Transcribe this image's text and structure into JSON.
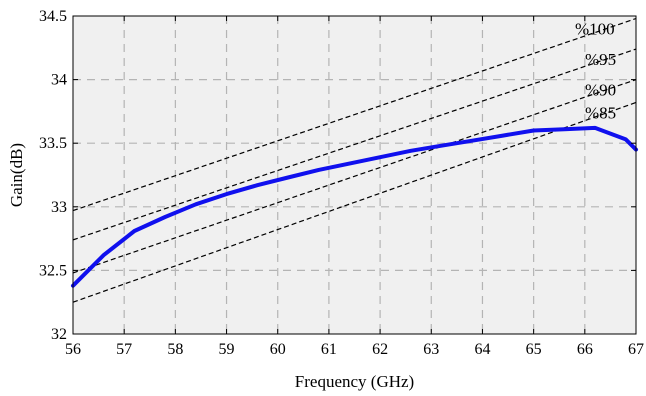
{
  "chart_data": {
    "type": "line",
    "title": "",
    "xlabel": "Frequency (GHz)",
    "ylabel": "Gain(dB)",
    "xlim": [
      56,
      67
    ],
    "ylim": [
      32,
      34.5
    ],
    "grid": true,
    "x_ticks": [
      "56",
      "57",
      "58",
      "59",
      "60",
      "61",
      "62",
      "63",
      "64",
      "65",
      "66",
      "67"
    ],
    "y_ticks": [
      "32",
      "32.5",
      "33",
      "33.5",
      "34",
      "34.5"
    ],
    "colors": {
      "plot_background": "#f0f0f0",
      "main_series": "#1010ee",
      "reference_lines": "#000000",
      "grid": "#b4b4b4"
    },
    "series": [
      {
        "style": "solid",
        "x": [
          56,
          56.6,
          57.2,
          57.8,
          58.4,
          59,
          59.6,
          60.2,
          60.8,
          61.4,
          62,
          62.6,
          63.2,
          63.8,
          64.4,
          65,
          65.6,
          66.2,
          66.8,
          67
        ],
        "y": [
          32.38,
          32.62,
          32.81,
          32.92,
          33.02,
          33.1,
          33.17,
          33.23,
          33.29,
          33.34,
          33.39,
          33.44,
          33.48,
          33.52,
          33.56,
          33.6,
          33.61,
          33.62,
          33.53,
          33.45
        ]
      }
    ],
    "reference_lines": [
      {
        "label": "%100",
        "x": [
          56,
          67
        ],
        "y": [
          32.97,
          34.48
        ]
      },
      {
        "label": "%95",
        "x": [
          56,
          67
        ],
        "y": [
          32.74,
          34.24
        ]
      },
      {
        "label": "%90",
        "x": [
          56,
          67
        ],
        "y": [
          32.48,
          34.0
        ]
      },
      {
        "label": "%85",
        "x": [
          56,
          67
        ],
        "y": [
          32.25,
          33.82
        ]
      }
    ]
  }
}
